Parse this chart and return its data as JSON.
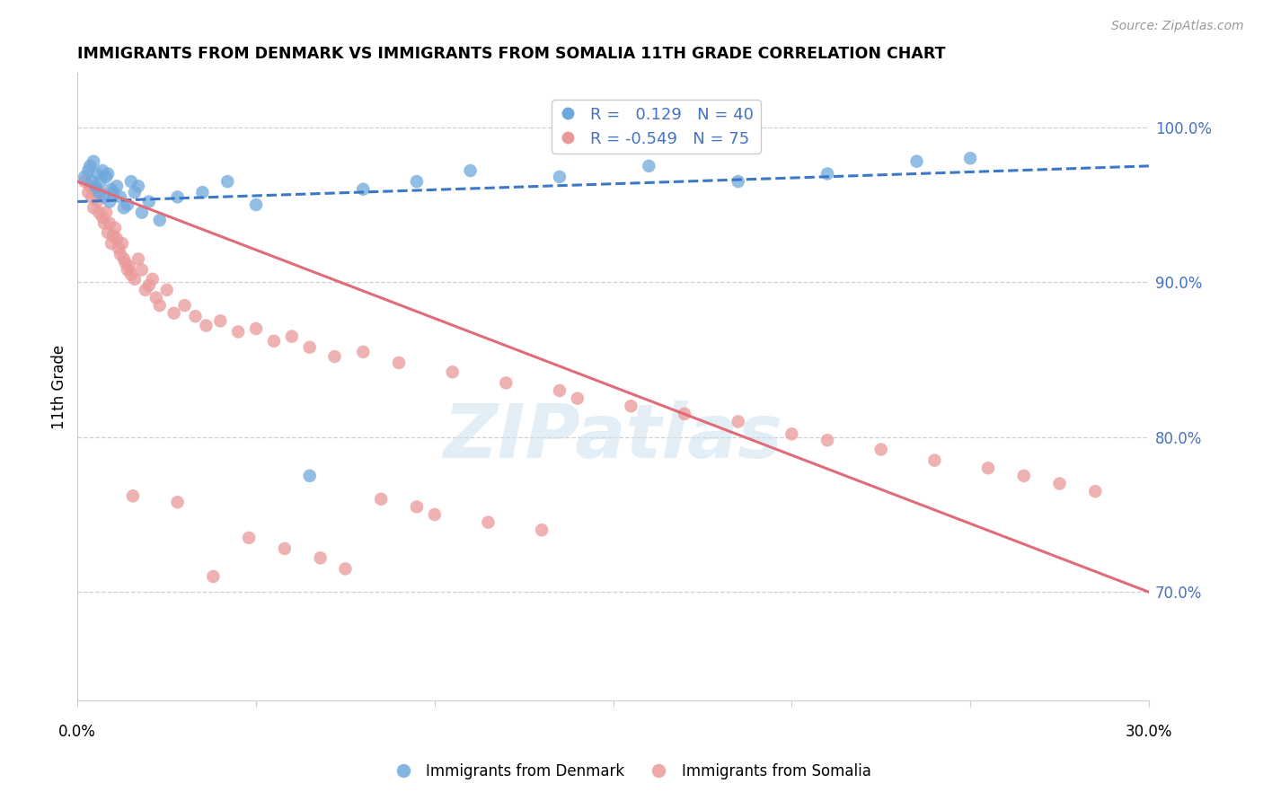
{
  "title": "IMMIGRANTS FROM DENMARK VS IMMIGRANTS FROM SOMALIA 11TH GRADE CORRELATION CHART",
  "source": "Source: ZipAtlas.com",
  "ylabel": "11th Grade",
  "y_ticks": [
    70.0,
    80.0,
    90.0,
    100.0
  ],
  "x_min": 0.0,
  "x_max": 30.0,
  "y_min": 63.0,
  "y_max": 103.5,
  "denmark_R": 0.129,
  "denmark_N": 40,
  "somalia_R": -0.549,
  "somalia_N": 75,
  "denmark_color": "#6fa8dc",
  "somalia_color": "#ea9999",
  "denmark_line_color": "#3d78c8",
  "somalia_line_color": "#e06c7a",
  "watermark": "ZIPatlas",
  "denmark_scatter_x": [
    0.2,
    0.3,
    0.35,
    0.4,
    0.45,
    0.5,
    0.55,
    0.6,
    0.65,
    0.7,
    0.75,
    0.8,
    0.85,
    0.9,
    0.95,
    1.0,
    1.1,
    1.2,
    1.3,
    1.4,
    1.5,
    1.6,
    1.7,
    1.8,
    2.0,
    2.3,
    2.8,
    3.5,
    4.2,
    5.0,
    6.5,
    8.0,
    9.5,
    11.0,
    13.5,
    16.0,
    18.5,
    21.0,
    23.5,
    25.0
  ],
  "denmark_scatter_y": [
    96.8,
    97.2,
    97.5,
    96.5,
    97.8,
    96.2,
    97.0,
    95.8,
    96.5,
    97.2,
    95.5,
    96.8,
    97.0,
    95.2,
    96.0,
    95.8,
    96.2,
    95.5,
    94.8,
    95.0,
    96.5,
    95.8,
    96.2,
    94.5,
    95.2,
    94.0,
    95.5,
    95.8,
    96.5,
    95.0,
    77.5,
    96.0,
    96.5,
    97.2,
    96.8,
    97.5,
    96.5,
    97.0,
    97.8,
    98.0
  ],
  "somalia_scatter_x": [
    0.2,
    0.3,
    0.35,
    0.4,
    0.45,
    0.5,
    0.55,
    0.6,
    0.65,
    0.7,
    0.75,
    0.8,
    0.85,
    0.9,
    0.95,
    1.0,
    1.05,
    1.1,
    1.15,
    1.2,
    1.25,
    1.3,
    1.35,
    1.4,
    1.45,
    1.5,
    1.6,
    1.7,
    1.8,
    1.9,
    2.0,
    2.1,
    2.2,
    2.3,
    2.5,
    2.7,
    3.0,
    3.3,
    3.6,
    4.0,
    4.5,
    5.0,
    5.5,
    6.0,
    6.5,
    7.2,
    8.0,
    9.0,
    10.5,
    12.0,
    13.5,
    14.0,
    15.5,
    17.0,
    18.5,
    20.0,
    21.0,
    22.5,
    24.0,
    25.5,
    26.5,
    27.5,
    28.5,
    8.5,
    9.5,
    10.0,
    11.5,
    13.0,
    4.8,
    5.8,
    6.8,
    7.5,
    3.8,
    2.8,
    1.55
  ],
  "somalia_scatter_y": [
    96.5,
    95.8,
    96.2,
    95.5,
    94.8,
    96.0,
    95.2,
    94.5,
    95.8,
    94.2,
    93.8,
    94.5,
    93.2,
    93.8,
    92.5,
    93.0,
    93.5,
    92.8,
    92.2,
    91.8,
    92.5,
    91.5,
    91.2,
    90.8,
    91.0,
    90.5,
    90.2,
    91.5,
    90.8,
    89.5,
    89.8,
    90.2,
    89.0,
    88.5,
    89.5,
    88.0,
    88.5,
    87.8,
    87.2,
    87.5,
    86.8,
    87.0,
    86.2,
    86.5,
    85.8,
    85.2,
    85.5,
    84.8,
    84.2,
    83.5,
    83.0,
    82.5,
    82.0,
    81.5,
    81.0,
    80.2,
    79.8,
    79.2,
    78.5,
    78.0,
    77.5,
    77.0,
    76.5,
    76.0,
    75.5,
    75.0,
    74.5,
    74.0,
    73.5,
    72.8,
    72.2,
    71.5,
    71.0,
    75.8,
    76.2
  ]
}
